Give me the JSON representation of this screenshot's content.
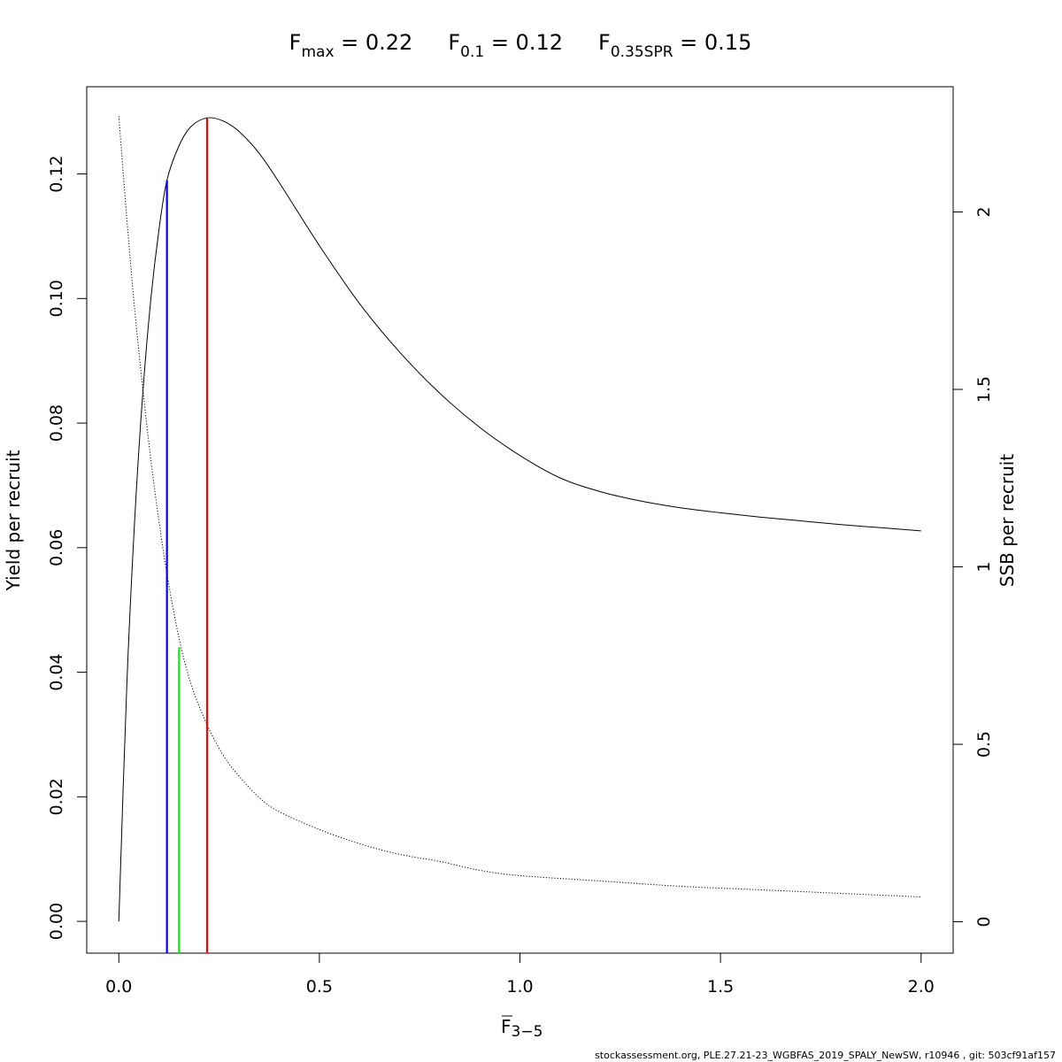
{
  "header": {
    "items": [
      {
        "sym": "F",
        "sub": "max",
        "eq": " = 0.22"
      },
      {
        "sym": "F",
        "sub": "0.1",
        "eq": " = 0.12"
      },
      {
        "sym": "F",
        "sub": "0.35SPR",
        "eq": " = 0.15"
      }
    ]
  },
  "footer": {
    "text": "stockassessment.org, PLE.27.21-23_WGBFAS_2019_SPALY_NewSW, r10946 , git: 503cf91af157"
  },
  "chart_data": {
    "type": "line",
    "title": "",
    "xlabel": {
      "sym": "F",
      "sub": "3−5"
    },
    "ylabel_left": "Yield per recruit",
    "ylabel_right": "SSB per recruit",
    "xlim": [
      -0.08,
      2.08
    ],
    "ylim_left": [
      -0.0051,
      0.134
    ],
    "ylim_right": [
      -0.0884,
      2.3528
    ],
    "x_ticks": [
      0,
      0.5,
      1,
      1.5,
      2
    ],
    "x_tick_labels": [
      "0.0",
      "0.5",
      "1.0",
      "1.5",
      "2.0"
    ],
    "y_left_ticks": [
      0,
      0.02,
      0.04,
      0.06,
      0.08,
      0.1,
      0.12
    ],
    "y_left_tick_labels": [
      "0.00",
      "0.02",
      "0.04",
      "0.06",
      "0.08",
      "0.10",
      "0.12"
    ],
    "y_right_ticks": [
      0,
      0.5,
      1,
      1.5,
      2
    ],
    "y_right_tick_labels": [
      "0",
      "0.5",
      "1",
      "1.5",
      "2"
    ],
    "grid": false,
    "series": [
      {
        "axis": "left",
        "style": "solid",
        "color": "#000000",
        "x": [
          0,
          0.02,
          0.04,
          0.06,
          0.08,
          0.1,
          0.12,
          0.15,
          0.18,
          0.22,
          0.26,
          0.3,
          0.35,
          0.4,
          0.5,
          0.6,
          0.7,
          0.8,
          0.9,
          1.0,
          1.1,
          1.2,
          1.3,
          1.4,
          1.5,
          1.6,
          1.7,
          1.8,
          1.9,
          2.0
        ],
        "y": [
          0,
          0.038,
          0.065,
          0.085,
          0.1,
          0.111,
          0.119,
          0.1245,
          0.1276,
          0.129,
          0.1285,
          0.1268,
          0.1233,
          0.1186,
          0.1085,
          0.0992,
          0.0914,
          0.0848,
          0.0793,
          0.0748,
          0.0712,
          0.069,
          0.0675,
          0.0664,
          0.0656,
          0.0649,
          0.0643,
          0.0637,
          0.0632,
          0.0627
        ]
      },
      {
        "axis": "right",
        "style": "dotted",
        "color": "#000000",
        "x": [
          0,
          0.02,
          0.04,
          0.06,
          0.08,
          0.1,
          0.12,
          0.15,
          0.18,
          0.22,
          0.26,
          0.3,
          0.35,
          0.4,
          0.5,
          0.6,
          0.7,
          0.8,
          0.9,
          1.0,
          1.2,
          1.4,
          1.6,
          1.8,
          2.0
        ],
        "y": [
          2.27,
          1.98,
          1.72,
          1.5,
          1.3,
          1.13,
          0.98,
          0.8,
          0.67,
          0.555,
          0.47,
          0.41,
          0.35,
          0.31,
          0.26,
          0.22,
          0.19,
          0.17,
          0.145,
          0.13,
          0.115,
          0.1,
          0.09,
          0.08,
          0.07
        ]
      }
    ],
    "reference_lines": [
      {
        "name": "F0.1",
        "x": 0.12,
        "y_top": 0.119,
        "color": "#0000ff"
      },
      {
        "name": "F0.35SPR",
        "x": 0.15,
        "y_top": 0.044,
        "color": "#00ff00"
      },
      {
        "name": "Fmax",
        "x": 0.22,
        "y_top": 0.129,
        "color": "#ff0000"
      }
    ]
  }
}
